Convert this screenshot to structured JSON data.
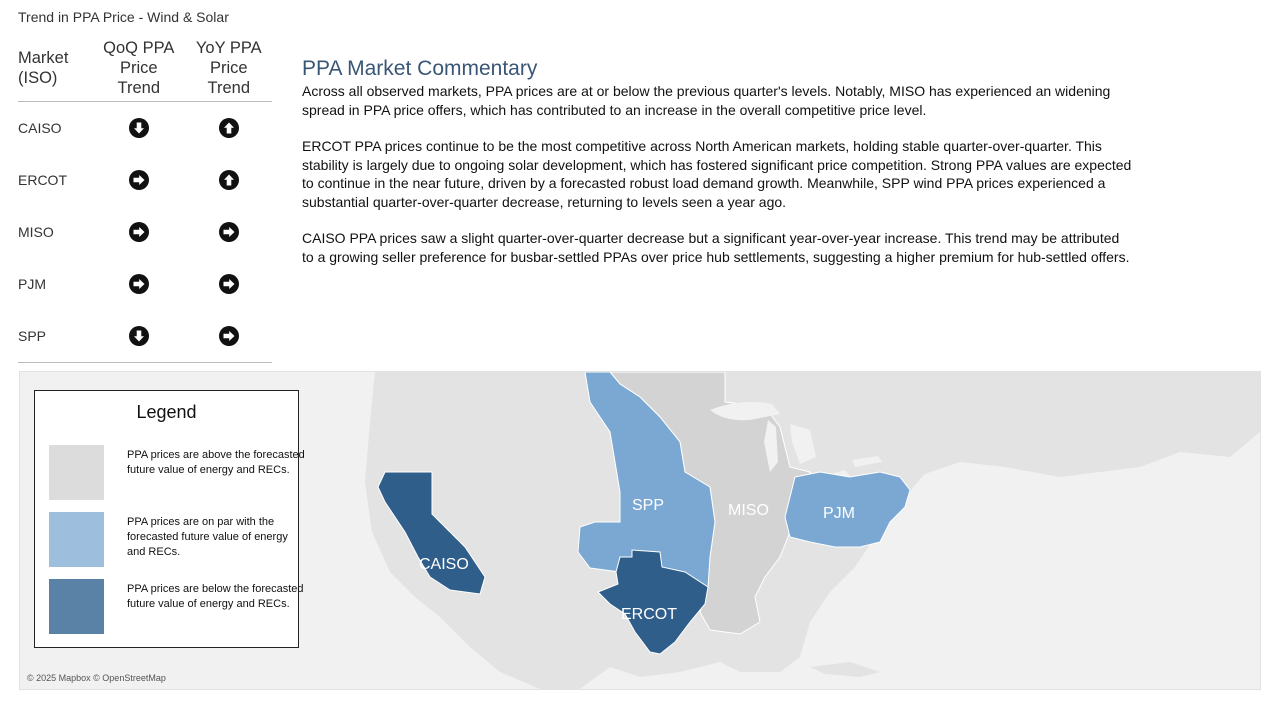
{
  "page_title": "Trend in PPA Price - Wind & Solar",
  "table": {
    "headers": [
      "Market\n(ISO)",
      "QoQ PPA\nPrice\nTrend",
      "YoY PPA\nPrice\nTrend"
    ],
    "rows": [
      {
        "market": "CAISO",
        "qoq": "down",
        "yoy": "up"
      },
      {
        "market": "ERCOT",
        "qoq": "right",
        "yoy": "up"
      },
      {
        "market": "MISO",
        "qoq": "right",
        "yoy": "right"
      },
      {
        "market": "PJM",
        "qoq": "right",
        "yoy": "right"
      },
      {
        "market": "SPP",
        "qoq": "down",
        "yoy": "right"
      }
    ]
  },
  "commentary": {
    "title": "PPA Market Commentary",
    "paragraphs": [
      "Across all observed markets, PPA prices are at or below the previous quarter's levels. Notably, MISO has experienced an widening spread in PPA price offers, which has contributed to an increase in the overall competitive price level.",
      "ERCOT PPA prices continue to be the most competitive across North American markets, holding stable quarter-over-quarter. This stability is largely due to ongoing solar development, which has fostered significant price competition. Strong PPA values are expected to continue in the near future, driven by a forecasted robust load demand growth. Meanwhile, SPP wind PPA prices experienced a substantial quarter-over-quarter decrease, returning to levels seen a year ago.",
      "CAISO PPA prices saw a slight quarter-over-quarter decrease but a significant year-over-year increase. This trend may be attributed to a growing seller preference for busbar-settled PPAs over price hub settlements, suggesting a higher premium for hub-settled offers."
    ]
  },
  "legend": {
    "title": "Legend",
    "items": [
      {
        "text": "PPA prices are above the forecasted future value of energy and RECs.",
        "color": "#dcdcdc"
      },
      {
        "text": "PPA prices are on par with the forecasted future value of energy and RECs.",
        "color": "#9dbfdd"
      },
      {
        "text": "PPA prices are below the forecasted future value of energy and RECs.",
        "color": "#5a81a6"
      }
    ]
  },
  "map": {
    "attribution": "© 2025 Mapbox © OpenStreetMap",
    "regions": [
      {
        "label": "CAISO",
        "status": "below",
        "color": "#2f5e8a"
      },
      {
        "label": "SPP",
        "status": "par",
        "color": "#7aa8d2"
      },
      {
        "label": "MISO",
        "status": "above",
        "color": "#d3d3d3"
      },
      {
        "label": "PJM",
        "status": "par",
        "color": "#7aa8d2"
      },
      {
        "label": "ERCOT",
        "status": "below",
        "color": "#2f5e8a"
      }
    ]
  }
}
